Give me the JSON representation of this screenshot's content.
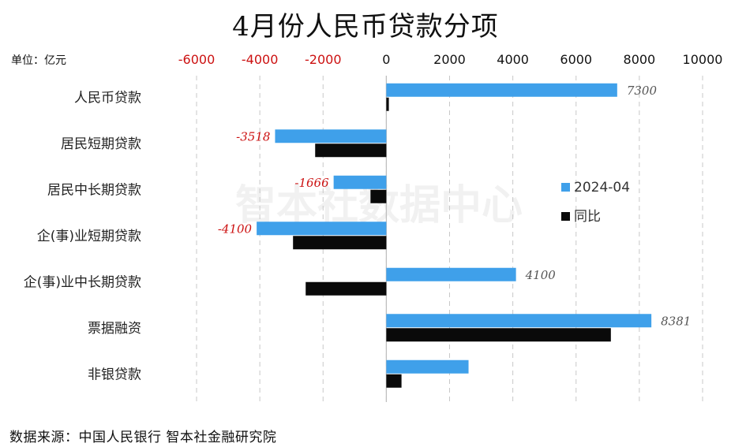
{
  "title": "4月份人民币贷款分项",
  "unit_label": "单位：亿元",
  "source": "数据来源：中国人民银行 智本社金融研究院",
  "watermark": "智本社数据中心",
  "colors": {
    "primary": "#3fa0ea",
    "secondary": "#0a0a0a",
    "negative_text": "#cc1111",
    "axis_text": "#111111",
    "label_text": "#555555",
    "grid": "#c8c8c8"
  },
  "chart_data": {
    "type": "bar",
    "orientation": "horizontal",
    "categories": [
      "人民币贷款",
      "居民短期贷款",
      "居民中长期贷款",
      "企(事)业短期贷款",
      "企(事)业中长期贷款",
      "票据融资",
      "非银贷款"
    ],
    "series": [
      {
        "name": "2024-04",
        "color": "#3fa0ea",
        "values": [
          7300,
          -3518,
          -1666,
          -4100,
          4100,
          8381,
          2600
        ],
        "data_labels": [
          "7300",
          "-3518",
          "-1666",
          "-4100",
          "4100",
          "8381",
          null
        ]
      },
      {
        "name": "同比",
        "color": "#0a0a0a",
        "values": [
          80,
          -2250,
          -500,
          -2950,
          -2550,
          7100,
          480
        ]
      }
    ],
    "xlim": [
      -6000,
      10000
    ],
    "xticks": [
      -6000,
      -4000,
      -2000,
      0,
      2000,
      4000,
      6000,
      8000,
      10000
    ],
    "xtick_labels": [
      "-6000",
      "-4000",
      "-2000",
      "0",
      "2000",
      "4000",
      "6000",
      "8000",
      "10000"
    ],
    "axis_position": "top",
    "grid": true,
    "legend_position": "right"
  }
}
